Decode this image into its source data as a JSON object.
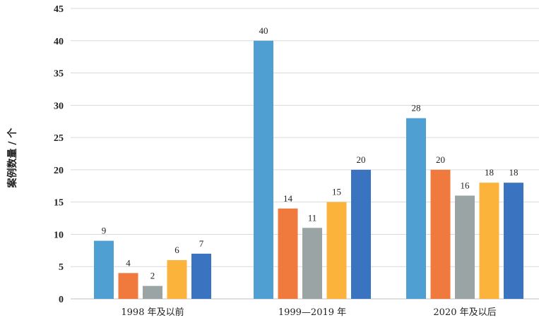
{
  "chart_data": {
    "type": "bar",
    "title": "",
    "xlabel": "",
    "ylabel": "案例数量 / 个",
    "ylim": [
      0,
      45
    ],
    "yticks": [
      0,
      5,
      10,
      15,
      20,
      25,
      30,
      35,
      40,
      45
    ],
    "grid": true,
    "legend": "none",
    "categories": [
      "1998 年及以前",
      "1999—2019 年",
      "2020 年及以后"
    ],
    "series": [
      {
        "values": [
          9,
          40,
          28
        ],
        "color": "#4f9fd2"
      },
      {
        "values": [
          4,
          14,
          20
        ],
        "color": "#f07a3d"
      },
      {
        "values": [
          2,
          11,
          16
        ],
        "color": "#9aa4a4"
      },
      {
        "values": [
          6,
          15,
          18
        ],
        "color": "#fbb33b"
      },
      {
        "values": [
          7,
          20,
          18
        ],
        "color": "#3a73c0"
      }
    ]
  }
}
